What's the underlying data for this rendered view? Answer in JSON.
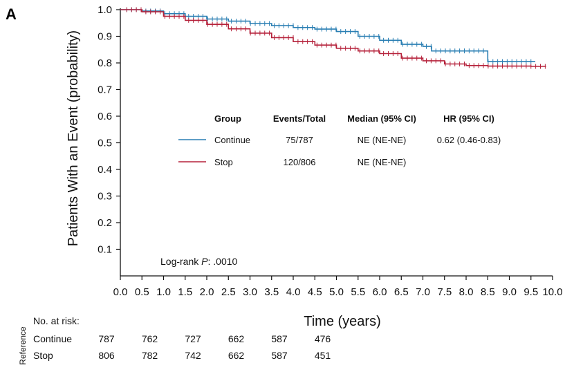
{
  "chart_data": {
    "type": "line",
    "panel_label": "A",
    "ylabel": "Patients With an Event (probability)",
    "xlabel": "Time (years)",
    "xlim": [
      0,
      10
    ],
    "ylim": [
      0,
      1
    ],
    "x_ticks": [
      "0.0",
      "0.5",
      "1.0",
      "1.5",
      "2.0",
      "2.5",
      "3.0",
      "3.5",
      "4.0",
      "4.5",
      "5.0",
      "5.5",
      "6.0",
      "6.5",
      "7.0",
      "7.5",
      "8.0",
      "8.5",
      "9.0",
      "9.5",
      "10.0"
    ],
    "y_ticks": [
      "0.1",
      "0.2",
      "0.3",
      "0.4",
      "0.5",
      "0.6",
      "0.7",
      "0.8",
      "0.9",
      "1.0"
    ],
    "legend": {
      "headers": [
        "Group",
        "Events/Total",
        "Median (95% CI)",
        "HR (95% CI)"
      ],
      "rows": [
        {
          "group": "Continue",
          "events_total": "75/787",
          "median": "NE (NE-NE)",
          "hr": "0.62 (0.46-0.83)"
        },
        {
          "group": "Stop",
          "events_total": "120/806",
          "median": "NE (NE-NE)",
          "hr": ""
        }
      ]
    },
    "annotation": {
      "prefix": "Log-rank ",
      "p": "P",
      "suffix": ": .0010"
    },
    "series": [
      {
        "name": "Continue",
        "color": "#2a7fb3",
        "x": [
          0.0,
          0.5,
          1.0,
          1.5,
          2.0,
          2.5,
          3.0,
          3.5,
          4.0,
          4.5,
          5.0,
          5.5,
          6.0,
          6.5,
          7.0,
          7.2,
          7.5,
          8.0,
          8.4,
          8.5,
          9.0,
          9.6
        ],
        "y": [
          1.0,
          0.995,
          0.985,
          0.975,
          0.965,
          0.957,
          0.948,
          0.94,
          0.933,
          0.927,
          0.918,
          0.9,
          0.885,
          0.87,
          0.862,
          0.845,
          0.845,
          0.845,
          0.845,
          0.805,
          0.805,
          0.805
        ]
      },
      {
        "name": "Stop",
        "color": "#b5213a",
        "x": [
          0.0,
          0.5,
          1.0,
          1.5,
          2.0,
          2.5,
          3.0,
          3.5,
          4.0,
          4.5,
          5.0,
          5.5,
          6.0,
          6.5,
          7.0,
          7.5,
          8.0,
          8.5,
          9.0,
          9.5,
          9.85
        ],
        "y": [
          1.0,
          0.992,
          0.975,
          0.96,
          0.945,
          0.928,
          0.912,
          0.895,
          0.88,
          0.867,
          0.855,
          0.845,
          0.835,
          0.818,
          0.808,
          0.796,
          0.79,
          0.788,
          0.788,
          0.787,
          0.787
        ]
      }
    ],
    "risk_table": {
      "title": "No. at risk:",
      "side_label": "Reference",
      "times": [
        0,
        1,
        2,
        3,
        4,
        5
      ],
      "rows": [
        {
          "group": "Continue",
          "values": [
            "787",
            "762",
            "727",
            "662",
            "587",
            "476"
          ]
        },
        {
          "group": "Stop",
          "values": [
            "806",
            "782",
            "742",
            "662",
            "587",
            "451"
          ]
        }
      ]
    }
  }
}
